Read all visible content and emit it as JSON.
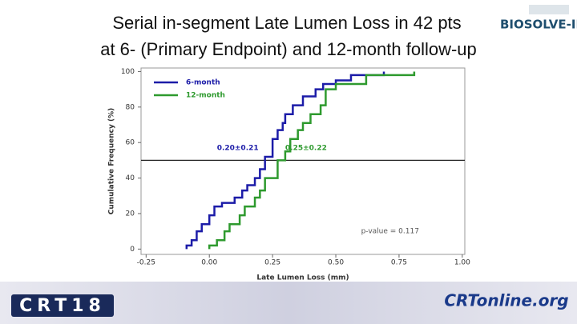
{
  "slide": {
    "title_lines": [
      "Serial in-segment Late Lumen Loss in 42 pts",
      "at 6- (Primary Endpoint) and 12-month follow-up"
    ],
    "top_logo": "BIOSOLVE-II",
    "bottom_left_logo": "CRT18",
    "bottom_right_logo": "CRTonline.org"
  },
  "chart_data": {
    "type": "line",
    "step": true,
    "xlabel": "Late Lumen Loss (mm)",
    "ylabel": "Cumulative Frequency (%)",
    "xlim": [
      -0.27,
      1.01
    ],
    "ylim": [
      -3,
      102
    ],
    "xticks": [
      {
        "value": -0.25,
        "label": "-0.25"
      },
      {
        "value": 0,
        "label": "0.00"
      },
      {
        "value": 0.25,
        "label": "0.25"
      },
      {
        "value": 0.5,
        "label": "0.50"
      },
      {
        "value": 0.75,
        "label": "0.75"
      },
      {
        "value": 1,
        "label": "1.00"
      }
    ],
    "yticks": [
      0,
      20,
      40,
      60,
      80,
      100
    ],
    "hline": 50,
    "legend": "top-left",
    "series": [
      {
        "name": "6-month",
        "color": "#1c1ca8",
        "x": [
          -0.09,
          -0.07,
          -0.05,
          -0.03,
          0.0,
          0.02,
          0.05,
          0.1,
          0.13,
          0.15,
          0.18,
          0.2,
          0.22,
          0.25,
          0.27,
          0.29,
          0.3,
          0.33,
          0.37,
          0.42,
          0.45,
          0.5,
          0.56,
          0.69
        ],
        "values": [
          2,
          5,
          10,
          14,
          19,
          24,
          26,
          29,
          33,
          36,
          40,
          45,
          52,
          62,
          67,
          71,
          76,
          81,
          86,
          90,
          93,
          95,
          98,
          100
        ]
      },
      {
        "name": "12-month",
        "color": "#2e9a2e",
        "x": [
          0.0,
          0.03,
          0.06,
          0.08,
          0.12,
          0.14,
          0.18,
          0.2,
          0.22,
          0.27,
          0.3,
          0.32,
          0.35,
          0.37,
          0.4,
          0.44,
          0.46,
          0.5,
          0.62,
          0.81
        ],
        "values": [
          2,
          5,
          10,
          14,
          19,
          24,
          29,
          33,
          40,
          50,
          55,
          62,
          67,
          71,
          76,
          81,
          90,
          93,
          98,
          100
        ]
      }
    ],
    "annotations": [
      {
        "text": "0.20±0.21",
        "x": 0.03,
        "y": 57,
        "color": "#1c1ca8"
      },
      {
        "text": "0.25±0.22",
        "x": 0.3,
        "y": 57,
        "color": "#2e9a2e"
      },
      {
        "text": "p-value = 0.117",
        "x": 0.6,
        "y": 10,
        "color": "#555555"
      }
    ]
  }
}
